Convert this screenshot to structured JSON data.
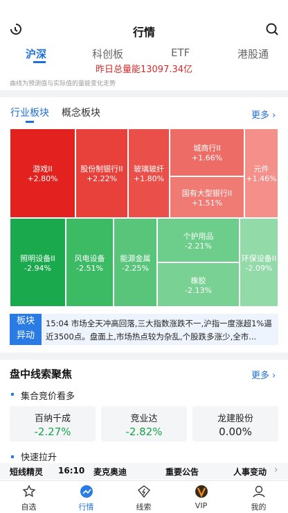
{
  "header": {
    "title": "行情"
  },
  "tabs": [
    "沪深",
    "科创板",
    "ETF",
    "港股通"
  ],
  "volume_note": "昨日总量能13097.34亿",
  "curve_note": "曲线为预测值与实际值的量能变化走势",
  "sector": {
    "tabs": [
      "行业板块",
      "概念板块"
    ],
    "more": "更多",
    "cells": [
      {
        "name": "游戏II",
        "change": "+2.80%"
      },
      {
        "name": "股份制银行II",
        "change": "+2.22%"
      },
      {
        "name": "玻璃玻纤",
        "change": "+1.80%"
      },
      {
        "name": "城商行II",
        "change": "+1.66%"
      },
      {
        "name": "国有大型银行II",
        "change": "+1.51%"
      },
      {
        "name": "元件",
        "change": "+1.46%"
      },
      {
        "name": "照明设备II",
        "change": "-2.94%"
      },
      {
        "name": "风电设备",
        "change": "-2.51%"
      },
      {
        "name": "能源金属",
        "change": "-2.25%"
      },
      {
        "name": "个护用品",
        "change": "-2.21%"
      },
      {
        "name": "橡胶",
        "change": "-2.13%"
      },
      {
        "name": "环保设备II",
        "change": "-2.09%"
      }
    ]
  },
  "news": {
    "badge_line1": "板块",
    "badge_line2": "异动",
    "text": "15:04 市场全天冲高回落,三大指数涨跌不一,沪指一度涨超1%逼近3500点。盘面上,市场热点较为杂乱,个股跌多涨少,全市..."
  },
  "clues": {
    "title": "盘中线索聚焦",
    "more": "更多",
    "group1": "集合竞价看多",
    "stocks": [
      {
        "name": "百纳千成",
        "change": "-2.27%"
      },
      {
        "name": "竞业达",
        "change": "-2.82%"
      },
      {
        "name": "龙建股份",
        "change": "0.00%"
      }
    ],
    "group2": "快速拉升"
  },
  "ticker": {
    "label": "短线精灵",
    "time": "16:10",
    "stock": "麦克奥迪",
    "event1": "重要公告",
    "event2": "人事变动"
  },
  "nav": [
    "自选",
    "行情",
    "线索",
    "VIP",
    "我的"
  ]
}
